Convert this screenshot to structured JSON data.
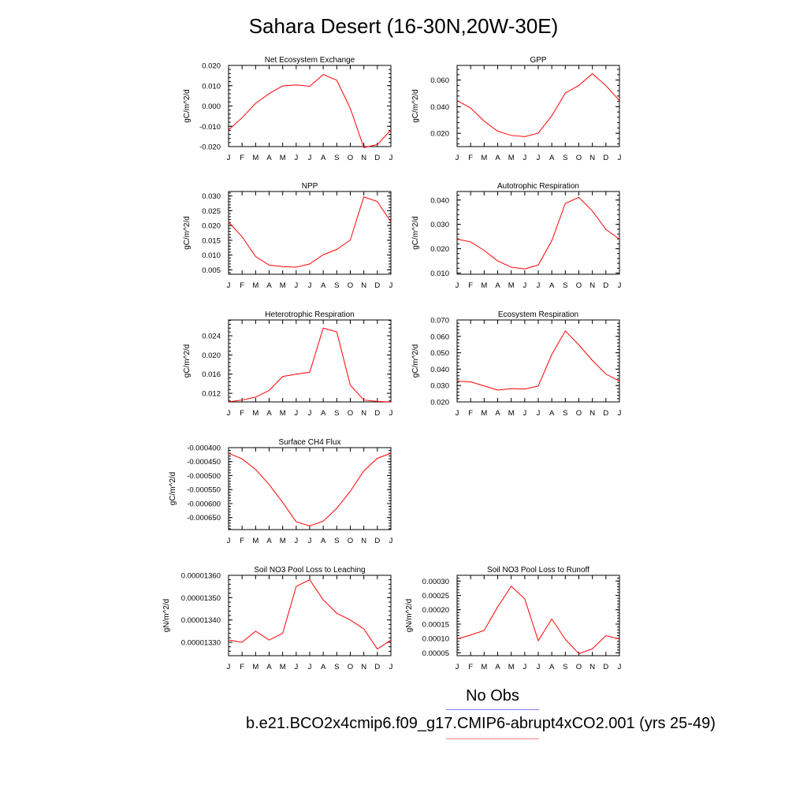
{
  "title": "Sahara Desert (16-30N,20W-30E)",
  "months": [
    "J",
    "F",
    "M",
    "A",
    "M",
    "J",
    "J",
    "A",
    "S",
    "O",
    "N",
    "D",
    "J"
  ],
  "legend": {
    "obs_label": "No Obs",
    "obs_color": "#8080ff",
    "case_label": "b.e21.BCO2x4cmip6.f09_g17.CMIP6-abrupt4xCO2.001 (yrs 25-49)",
    "case_color": "#ff8080"
  },
  "line_color": "#ff0000",
  "chart_data": [
    {
      "type": "line",
      "title": "Net Ecosystem Exchange",
      "ylabel": "gC/m^2/d",
      "ylim": [
        -0.02,
        0.02
      ],
      "yticks": [
        "-0.020",
        "-0.010",
        "0.000",
        "0.010",
        "0.020"
      ],
      "ytick_values": [
        -0.02,
        -0.01,
        0.0,
        0.01,
        0.02
      ],
      "series": [
        {
          "values": [
            -0.0118,
            -0.0058,
            0.0013,
            0.0061,
            0.0099,
            0.0104,
            0.0097,
            0.0155,
            0.0127,
            -0.0012,
            -0.0205,
            -0.019,
            -0.0118
          ]
        }
      ]
    },
    {
      "type": "line",
      "title": "GPP",
      "ylabel": "gC/m^2/d",
      "ylim": [
        0.01,
        0.071
      ],
      "yticks": [
        "0.020",
        "0.040",
        "0.060"
      ],
      "ytick_values": [
        0.02,
        0.04,
        0.06
      ],
      "series": [
        {
          "values": [
            0.0446,
            0.039,
            0.0291,
            0.0216,
            0.0184,
            0.0175,
            0.0201,
            0.0332,
            0.0502,
            0.056,
            0.0648,
            0.0558,
            0.0446
          ]
        }
      ]
    },
    {
      "type": "line",
      "title": "NPP",
      "ylabel": "gC/m^2/d",
      "ylim": [
        0.0035,
        0.0315
      ],
      "yticks": [
        "0.005",
        "0.010",
        "0.015",
        "0.020",
        "0.025",
        "0.030"
      ],
      "ytick_values": [
        0.005,
        0.01,
        0.015,
        0.02,
        0.025,
        0.03
      ],
      "series": [
        {
          "values": [
            0.0212,
            0.0162,
            0.0095,
            0.0066,
            0.0061,
            0.0059,
            0.007,
            0.0101,
            0.0119,
            0.0151,
            0.0297,
            0.0281,
            0.0212
          ]
        }
      ]
    },
    {
      "type": "line",
      "title": "Autotrophic Respiration",
      "ylabel": "gC/m^2/d",
      "ylim": [
        0.0095,
        0.0435
      ],
      "yticks": [
        "0.010",
        "0.020",
        "0.030",
        "0.040"
      ],
      "ytick_values": [
        0.01,
        0.02,
        0.03,
        0.04
      ],
      "series": [
        {
          "values": [
            0.0239,
            0.0228,
            0.0193,
            0.015,
            0.0124,
            0.0117,
            0.0133,
            0.0233,
            0.0386,
            0.0411,
            0.0355,
            0.0279,
            0.0239
          ]
        }
      ]
    },
    {
      "type": "line",
      "title": "Heterotrophic Respiration",
      "ylabel": "gC/m^2/d",
      "ylim": [
        0.0102,
        0.0273
      ],
      "yticks": [
        "0.012",
        "0.016",
        "0.020",
        "0.024"
      ],
      "ytick_values": [
        0.012,
        0.016,
        0.02,
        0.024
      ],
      "series": [
        {
          "values": [
            0.0102,
            0.0106,
            0.0112,
            0.0126,
            0.0155,
            0.016,
            0.0164,
            0.0256,
            0.0248,
            0.0137,
            0.0106,
            0.0103,
            0.0102
          ]
        }
      ]
    },
    {
      "type": "line",
      "title": "Ecosystem Respiration",
      "ylabel": "gC/m^2/d",
      "ylim": [
        0.02,
        0.07
      ],
      "yticks": [
        "0.020",
        "0.030",
        "0.040",
        "0.050",
        "0.060",
        "0.070"
      ],
      "ytick_values": [
        0.02,
        0.03,
        0.04,
        0.05,
        0.06,
        0.07
      ],
      "series": [
        {
          "values": [
            0.0327,
            0.0322,
            0.0298,
            0.0272,
            0.0281,
            0.0279,
            0.0297,
            0.0489,
            0.0633,
            0.0548,
            0.0453,
            0.037,
            0.0327
          ]
        }
      ]
    },
    {
      "type": "line",
      "title": "Surface CH4 Flux",
      "ylabel": "gC/m^2/d",
      "ylim": [
        -0.000693,
        -0.0004
      ],
      "yticks": [
        "-0.000400",
        "-0.000450",
        "-0.000500",
        "-0.000550",
        "-0.000600",
        "-0.000650"
      ],
      "ytick_values": [
        -0.0004,
        -0.00045,
        -0.0005,
        -0.00055,
        -0.0006,
        -0.00065
      ],
      "series": [
        {
          "values": [
            -0.00042,
            -0.00044,
            -0.000478,
            -0.000532,
            -0.000596,
            -0.000665,
            -0.00068,
            -0.000663,
            -0.000617,
            -0.000556,
            -0.000483,
            -0.000438,
            -0.00042
          ]
        }
      ]
    },
    {
      "type": "line",
      "title": "Soil NO3 Pool Loss to Leaching",
      "ylabel": "gN/m^2/d",
      "ylim": [
        1.324e-05,
        1.36e-05
      ],
      "yticks": [
        "0.00001330",
        "0.00001340",
        "0.00001350",
        "0.00001360"
      ],
      "ytick_values": [
        1.33e-05,
        1.34e-05,
        1.35e-05,
        1.36e-05
      ],
      "series": [
        {
          "values": [
            1.331e-05,
            1.33e-05,
            1.335e-05,
            1.331e-05,
            1.334e-05,
            1.355e-05,
            1.358e-05,
            1.349e-05,
            1.343e-05,
            1.34e-05,
            1.336e-05,
            1.327e-05,
            1.331e-05
          ]
        }
      ]
    },
    {
      "type": "line",
      "title": "Soil NO3 Pool Loss to Runoff",
      "ylabel": "gN/m^2/d",
      "ylim": [
        4e-05,
        0.00032
      ],
      "yticks": [
        "0.00005",
        "0.00010",
        "0.00015",
        "0.00020",
        "0.00025",
        "0.00030"
      ],
      "ytick_values": [
        5e-05,
        0.0001,
        0.00015,
        0.0002,
        0.00025,
        0.0003
      ],
      "series": [
        {
          "values": [
            9.8e-05,
            0.000112,
            0.000128,
            0.00021,
            0.000282,
            0.000238,
            9.2e-05,
            0.000168,
            9.7e-05,
            4.7e-05,
            6.4e-05,
            0.00011,
            9.8e-05
          ]
        }
      ]
    }
  ]
}
